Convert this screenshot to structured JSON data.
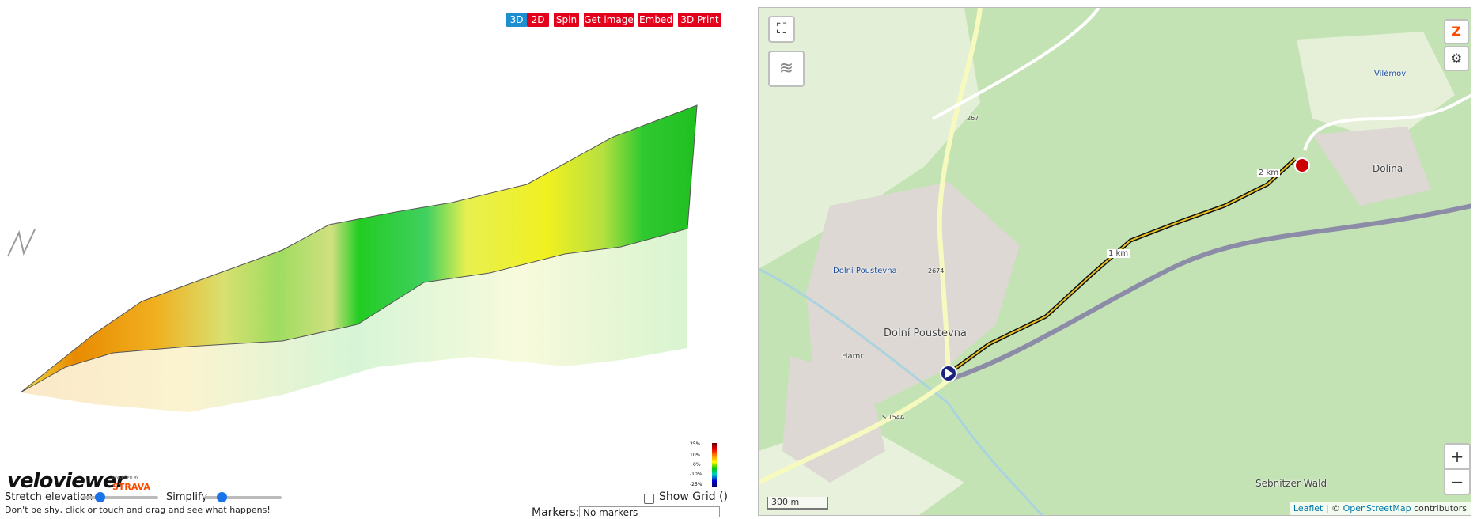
{
  "toolbar": {
    "buttons": [
      "3D",
      "2D",
      "Spin",
      "Get image",
      "Embed",
      "3D Print"
    ]
  },
  "legend": [
    "25%",
    "10%",
    "0%",
    "-10%",
    "-25%"
  ],
  "logo": {
    "name": "veloviewer",
    "powered": "POWERED BY",
    "brand": "STRAVA"
  },
  "controls": {
    "stretch": "Stretch elevation",
    "simplify": "Simplify",
    "grid": "Show Grid ()",
    "hint": "Don't be shy, click or touch and drag and see what happens!",
    "markers": "Markers:",
    "marker_option": "No markers"
  },
  "map": {
    "labels": [
      "Dolní Poustevna",
      "Dolní Poustevna",
      "1 km",
      "2 km",
      "Dolina",
      "Sebnitzer Wald",
      "Vilémov",
      "Hamr",
      "267",
      "2674",
      "S 154A"
    ],
    "scale": "300 m",
    "attribution": {
      "leaflet": "Leaflet",
      "sep": "| ©",
      "osm": "OpenStreetMap",
      "rest": "contributors"
    },
    "zoom": [
      "+",
      "−"
    ]
  }
}
